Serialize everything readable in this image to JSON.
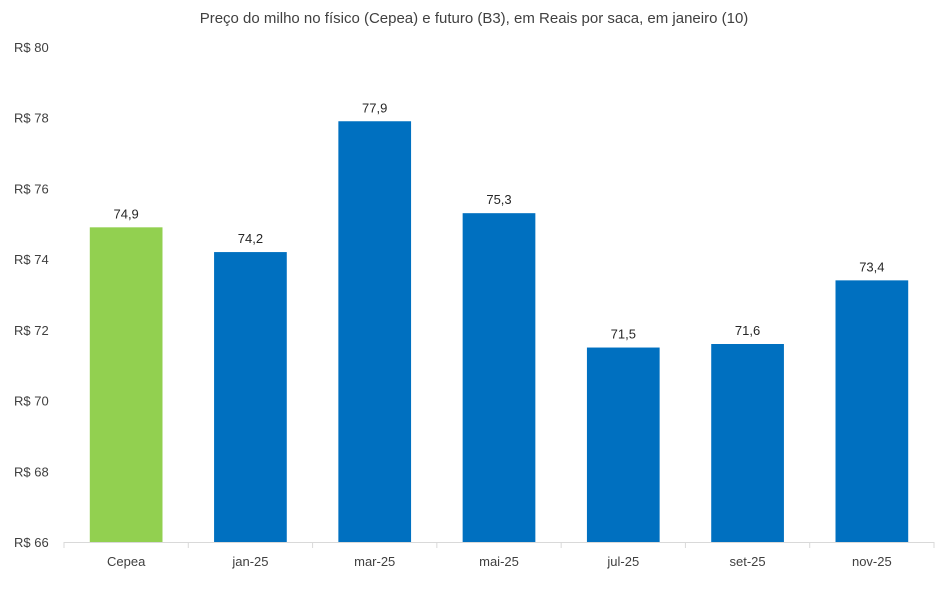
{
  "chart_data": {
    "type": "bar",
    "title": "Preço do milho no físico (Cepea) e futuro (B3), em Reais por saca, em janeiro (10)",
    "categories": [
      "Cepea",
      "jan-25",
      "mar-25",
      "mai-25",
      "jul-25",
      "set-25",
      "nov-25"
    ],
    "values": [
      74.9,
      74.2,
      77.9,
      75.3,
      71.5,
      71.6,
      73.4
    ],
    "data_labels": [
      "74,9",
      "74,2",
      "77,9",
      "75,3",
      "71,5",
      "71,6",
      "73,4"
    ],
    "bar_colors": [
      "#92d050",
      "#0070c0",
      "#0070c0",
      "#0070c0",
      "#0070c0",
      "#0070c0",
      "#0070c0"
    ],
    "ylim": [
      66,
      80
    ],
    "yticks": [
      66,
      68,
      70,
      72,
      74,
      76,
      78,
      80
    ],
    "ytick_labels": [
      "R$ 66",
      "R$ 68",
      "R$ 70",
      "R$ 72",
      "R$ 74",
      "R$ 76",
      "R$ 78",
      "R$ 80"
    ],
    "xlabel": "",
    "ylabel": "",
    "grid": false,
    "legend": false
  }
}
